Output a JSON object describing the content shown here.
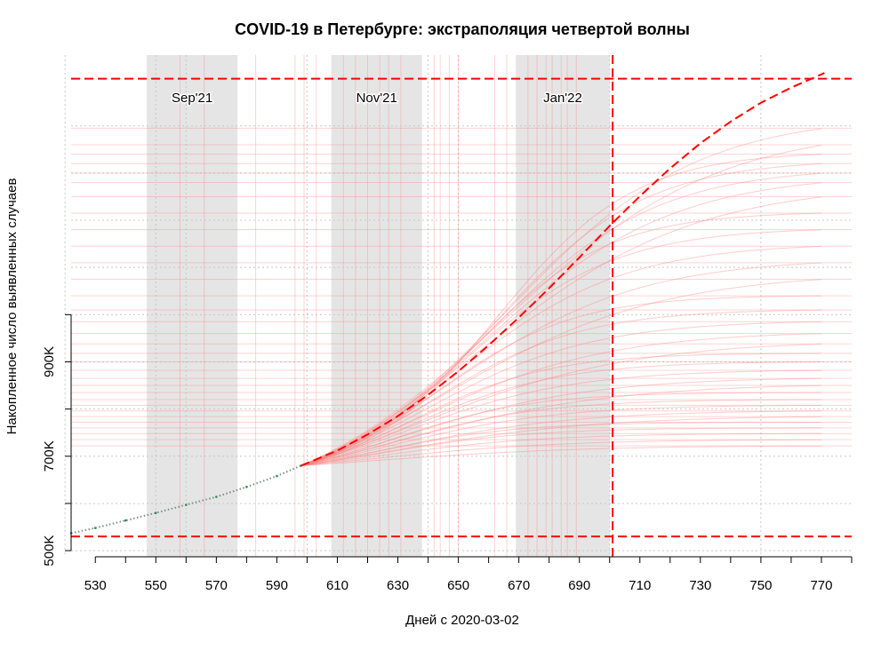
{
  "chart_data": {
    "type": "line",
    "title": "COVID-19 в Петербурге: экстраполяция четвертой волны",
    "xlabel": "Дней с 2020-03-02",
    "ylabel": "Накопленное число выявленных случаев",
    "xlim": [
      522,
      780
    ],
    "ylim": [
      487000,
      1550000
    ],
    "x_ticks": [
      530,
      540,
      550,
      560,
      570,
      580,
      590,
      600,
      610,
      620,
      630,
      640,
      650,
      660,
      670,
      680,
      690,
      700,
      710,
      720,
      730,
      740,
      750,
      760,
      770,
      780
    ],
    "x_tick_labels": [
      {
        "x": 530,
        "label": "530"
      },
      {
        "x": 550,
        "label": "550"
      },
      {
        "x": 570,
        "label": "570"
      },
      {
        "x": 590,
        "label": "590"
      },
      {
        "x": 610,
        "label": "610"
      },
      {
        "x": 630,
        "label": "630"
      },
      {
        "x": 650,
        "label": "650"
      },
      {
        "x": 670,
        "label": "670"
      },
      {
        "x": 690,
        "label": "690"
      },
      {
        "x": 710,
        "label": "710"
      },
      {
        "x": 730,
        "label": "730"
      },
      {
        "x": 750,
        "label": "750"
      },
      {
        "x": 770,
        "label": "770"
      }
    ],
    "y_ticks": [
      500000,
      600000,
      700000,
      800000,
      900000,
      1000000
    ],
    "y_tick_labels": [
      {
        "y": 500000,
        "label": "500K"
      },
      {
        "y": 700000,
        "label": "700K"
      },
      {
        "y": 900000,
        "label": "900K"
      }
    ],
    "grid": true,
    "month_bands": [
      {
        "label": "Sep'21",
        "start": 547,
        "end": 577
      },
      {
        "label": "Nov'21",
        "start": 608,
        "end": 638
      },
      {
        "label": "Jan'22",
        "start": 669,
        "end": 700
      }
    ],
    "reference_lines": {
      "vertical_x": 701,
      "horizontal_y": [
        530000,
        1500000
      ],
      "color": "#ff0000"
    },
    "observed": {
      "x": [
        522,
        530,
        540,
        550,
        560,
        570,
        580,
        590,
        598
      ],
      "y": [
        537000,
        548000,
        564000,
        580000,
        597000,
        614000,
        635000,
        658000,
        680000
      ]
    },
    "main_forecast": {
      "x": [
        598,
        610,
        620,
        630,
        640,
        650,
        660,
        670,
        680,
        690,
        700,
        710,
        720,
        730,
        740,
        750,
        760,
        771
      ],
      "y": [
        680000,
        712000,
        746000,
        785000,
        830000,
        880000,
        935000,
        994000,
        1056000,
        1121000,
        1188000,
        1251000,
        1310000,
        1363000,
        1409000,
        1449000,
        1481000,
        1512000
      ]
    },
    "forecast_ensemble_final": [
      722000,
      735000,
      748000,
      760000,
      772000,
      784000,
      796000,
      808000,
      820000,
      835000,
      850000,
      865000,
      882000,
      900000,
      918000,
      938000,
      960000,
      985000,
      1010000,
      1040000,
      1075000,
      1110000,
      1145000,
      1180000,
      1215000,
      1250000,
      1280000,
      1300000,
      1320000,
      1340000,
      1360000,
      1395000
    ]
  },
  "colors": {
    "forecast": "#ff0000",
    "ensemble": "#ff8080",
    "band": "#e5e5e5",
    "grid": "#c8c8c8",
    "observed": "#2e8b57"
  }
}
